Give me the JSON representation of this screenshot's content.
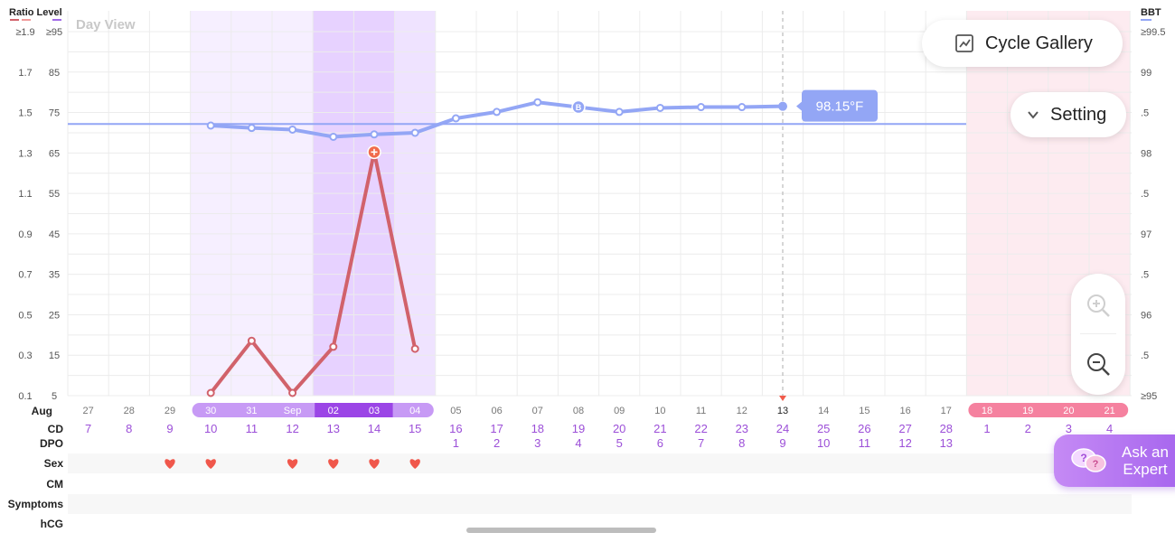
{
  "header": {
    "left_title": "Ratio Level",
    "right_title": "BBT",
    "view_label": "Day View",
    "ratio_axis": [
      "≥1.9",
      "1.7",
      "1.5",
      "1.3",
      "1.1",
      "0.9",
      "0.7",
      "0.5",
      "0.3",
      "0.1"
    ],
    "level_axis": [
      "≥95",
      "85",
      "75",
      "65",
      "55",
      "45",
      "35",
      "25",
      "15",
      "5"
    ],
    "bbt_axis": [
      "≥99.5",
      "99",
      ".5",
      "98",
      ".5",
      "97",
      ".5",
      "96",
      ".5",
      "≥95"
    ]
  },
  "buttons": {
    "cycle_gallery": "Cycle Gallery",
    "setting": "Setting",
    "ask_expert_line1": "Ask an",
    "ask_expert_line2": "Expert"
  },
  "row_labels": {
    "month": "Aug",
    "cd": "CD",
    "dpo": "DPO",
    "sex": "Sex",
    "cm": "CM",
    "symptoms": "Symptoms",
    "hcg": "hCG"
  },
  "tooltip": "98.15°F",
  "colors": {
    "bbt_line": "#93a6f5",
    "lh_line": "#d1626b",
    "peak_point": "#f16b4c",
    "fertile_light": "#f6efff",
    "fertile_mid": "#efe3ff",
    "fertile_peak": "#e7d2ff",
    "period_pink": "#fdebf0",
    "heart": "#f0574b"
  },
  "days": [
    {
      "date": "27",
      "cd": "7",
      "dpo": "",
      "sex": false,
      "bg": "none"
    },
    {
      "date": "28",
      "cd": "8",
      "dpo": "",
      "sex": false,
      "bg": "none"
    },
    {
      "date": "29",
      "cd": "9",
      "dpo": "",
      "sex": true,
      "bg": "none"
    },
    {
      "date": "30",
      "cd": "10",
      "dpo": "",
      "sex": true,
      "bg": "fertile"
    },
    {
      "date": "31",
      "cd": "11",
      "dpo": "",
      "sex": false,
      "bg": "fertile"
    },
    {
      "date": "Sep",
      "cd": "12",
      "dpo": "",
      "sex": true,
      "bg": "fertile"
    },
    {
      "date": "02",
      "cd": "13",
      "dpo": "",
      "sex": true,
      "bg": "peak"
    },
    {
      "date": "03",
      "cd": "14",
      "dpo": "",
      "sex": true,
      "bg": "peak"
    },
    {
      "date": "04",
      "cd": "15",
      "dpo": "",
      "sex": true,
      "bg": "fertile2"
    },
    {
      "date": "05",
      "cd": "16",
      "dpo": "1",
      "sex": false,
      "bg": "none"
    },
    {
      "date": "06",
      "cd": "17",
      "dpo": "2",
      "sex": false,
      "bg": "none"
    },
    {
      "date": "07",
      "cd": "18",
      "dpo": "3",
      "sex": false,
      "bg": "none"
    },
    {
      "date": "08",
      "cd": "19",
      "dpo": "4",
      "sex": false,
      "bg": "none"
    },
    {
      "date": "09",
      "cd": "20",
      "dpo": "5",
      "sex": false,
      "bg": "none"
    },
    {
      "date": "10",
      "cd": "21",
      "dpo": "6",
      "sex": false,
      "bg": "none"
    },
    {
      "date": "11",
      "cd": "22",
      "dpo": "7",
      "sex": false,
      "bg": "none"
    },
    {
      "date": "12",
      "cd": "23",
      "dpo": "8",
      "sex": false,
      "bg": "none"
    },
    {
      "date": "13",
      "cd": "24",
      "dpo": "9",
      "sex": false,
      "bg": "none",
      "today": true
    },
    {
      "date": "14",
      "cd": "25",
      "dpo": "10",
      "sex": false,
      "bg": "none"
    },
    {
      "date": "15",
      "cd": "26",
      "dpo": "11",
      "sex": false,
      "bg": "none"
    },
    {
      "date": "16",
      "cd": "27",
      "dpo": "12",
      "sex": false,
      "bg": "none"
    },
    {
      "date": "17",
      "cd": "28",
      "dpo": "13",
      "sex": false,
      "bg": "none"
    },
    {
      "date": "18",
      "cd": "1",
      "dpo": "",
      "sex": false,
      "bg": "period"
    },
    {
      "date": "19",
      "cd": "2",
      "dpo": "",
      "sex": false,
      "bg": "period"
    },
    {
      "date": "20",
      "cd": "3",
      "dpo": "",
      "sex": false,
      "bg": "period"
    },
    {
      "date": "21",
      "cd": "4",
      "dpo": "",
      "sex": false,
      "bg": "period"
    }
  ],
  "chart_data": {
    "type": "line",
    "series": [
      {
        "axis": "BBT (°F)",
        "points": [
          [
            3,
            98.33
          ],
          [
            4,
            98.3
          ],
          [
            5,
            98.28
          ],
          [
            6,
            98.19
          ],
          [
            7,
            98.22
          ],
          [
            8,
            98.24
          ],
          [
            9,
            98.42
          ],
          [
            10,
            98.5
          ],
          [
            11,
            98.62
          ],
          [
            12,
            98.56
          ],
          [
            13,
            98.5
          ],
          [
            14,
            98.55
          ],
          [
            15,
            98.56
          ],
          [
            16,
            98.56
          ],
          [
            17,
            98.57
          ]
        ],
        "special": {
          "index": 9,
          "label": "B"
        }
      },
      {
        "axis": "Ratio",
        "points": [
          [
            3,
            0.1
          ],
          [
            4,
            0.36
          ],
          [
            5,
            0.1
          ],
          [
            6,
            0.33
          ],
          [
            7,
            1.3
          ],
          [
            8,
            0.32
          ]
        ],
        "peak_index": 7
      }
    ],
    "coverline": 98.35,
    "bbt_range": [
      95,
      99.5
    ],
    "ratio_range": [
      0.1,
      1.9
    ],
    "grid": true
  }
}
